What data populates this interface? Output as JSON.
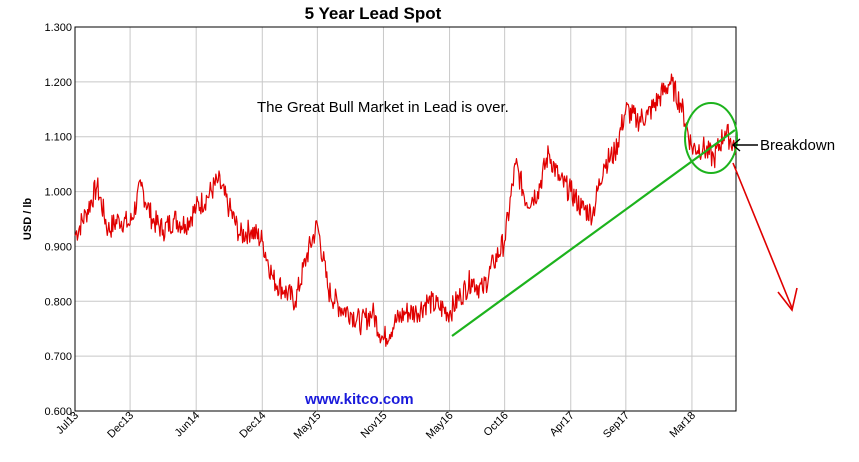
{
  "chart_data": {
    "type": "line",
    "title": "5 Year Lead Spot",
    "ylabel": "USD / lb",
    "xlabel": "",
    "ylim": [
      0.6,
      1.3
    ],
    "y_ticks": [
      "0.600",
      "0.700",
      "0.800",
      "0.900",
      "1.000",
      "1.100",
      "1.200",
      "1.300"
    ],
    "x_range": [
      "2013-07",
      "2018-07"
    ],
    "x_ticks": [
      {
        "label": "Jul13",
        "date": "2013-07"
      },
      {
        "label": "Dec13",
        "date": "2013-12"
      },
      {
        "label": "Jun14",
        "date": "2014-06"
      },
      {
        "label": "Dec14",
        "date": "2014-12"
      },
      {
        "label": "May15",
        "date": "2015-05"
      },
      {
        "label": "Nov15",
        "date": "2015-11"
      },
      {
        "label": "May16",
        "date": "2016-05"
      },
      {
        "label": "Oct16",
        "date": "2016-10"
      },
      {
        "label": "Apr17",
        "date": "2017-04"
      },
      {
        "label": "Sep17",
        "date": "2017-09"
      },
      {
        "label": "Mar18",
        "date": "2018-03"
      }
    ],
    "grid": true,
    "series": [
      {
        "color": "#e00000",
        "points": [
          [
            "2013-07",
            0.92
          ],
          [
            "2013-08",
            0.96
          ],
          [
            "2013-09",
            1.01
          ],
          [
            "2013-10",
            0.93
          ],
          [
            "2013-11",
            0.95
          ],
          [
            "2013-12",
            0.94
          ],
          [
            "2014-01",
            1.01
          ],
          [
            "2014-02",
            0.95
          ],
          [
            "2014-03",
            0.93
          ],
          [
            "2014-04",
            0.95
          ],
          [
            "2014-05",
            0.94
          ],
          [
            "2014-06",
            0.97
          ],
          [
            "2014-07",
            0.99
          ],
          [
            "2014-08",
            1.02
          ],
          [
            "2014-09",
            0.97
          ],
          [
            "2014-10",
            0.92
          ],
          [
            "2014-11",
            0.93
          ],
          [
            "2014-12",
            0.91
          ],
          [
            "2015-01",
            0.84
          ],
          [
            "2015-02",
            0.82
          ],
          [
            "2015-03",
            0.8
          ],
          [
            "2015-04",
            0.88
          ],
          [
            "2015-05",
            0.94
          ],
          [
            "2015-06",
            0.82
          ],
          [
            "2015-07",
            0.79
          ],
          [
            "2015-08",
            0.78
          ],
          [
            "2015-09",
            0.76
          ],
          [
            "2015-10",
            0.78
          ],
          [
            "2015-11",
            0.73
          ],
          [
            "2015-12",
            0.76
          ],
          [
            "2016-01",
            0.78
          ],
          [
            "2016-02",
            0.78
          ],
          [
            "2016-03",
            0.8
          ],
          [
            "2016-04",
            0.79
          ],
          [
            "2016-05",
            0.78
          ],
          [
            "2016-06",
            0.81
          ],
          [
            "2016-07",
            0.84
          ],
          [
            "2016-08",
            0.82
          ],
          [
            "2016-09",
            0.87
          ],
          [
            "2016-10",
            0.91
          ],
          [
            "2016-11",
            1.05
          ],
          [
            "2016-12",
            0.98
          ],
          [
            "2017-01",
            1.0
          ],
          [
            "2017-02",
            1.07
          ],
          [
            "2017-03",
            1.02
          ],
          [
            "2017-04",
            1.0
          ],
          [
            "2017-05",
            0.97
          ],
          [
            "2017-06",
            0.96
          ],
          [
            "2017-07",
            1.05
          ],
          [
            "2017-08",
            1.07
          ],
          [
            "2017-09",
            1.15
          ],
          [
            "2017-10",
            1.13
          ],
          [
            "2017-11",
            1.14
          ],
          [
            "2017-12",
            1.17
          ],
          [
            "2018-01",
            1.2
          ],
          [
            "2018-02",
            1.16
          ],
          [
            "2018-03",
            1.08
          ],
          [
            "2018-04",
            1.08
          ],
          [
            "2018-05",
            1.06
          ],
          [
            "2018-06",
            1.11
          ],
          [
            "2018-07",
            1.08
          ]
        ]
      }
    ],
    "annotations": [
      {
        "text": "The Great Bull Market in Lead is over."
      },
      {
        "text": "www.kitco.com"
      },
      {
        "text": "Breakdown"
      }
    ]
  }
}
